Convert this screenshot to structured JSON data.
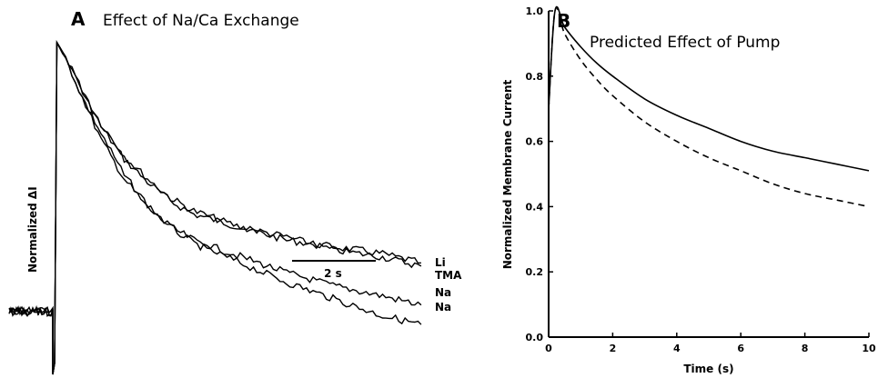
{
  "chart_data": [
    {
      "type": "line",
      "panel_letter": "A",
      "title": "Effect of Na/Ca Exchange",
      "ylabel": "Normalized ΔI",
      "xlabel": "",
      "scale_bar": {
        "label": "2 s",
        "duration_s": 2
      },
      "x_unit": "s",
      "ylim": [
        0,
        1
      ],
      "grid": false,
      "series": [
        {
          "name": "Li",
          "x": [
            0,
            0.05,
            0.3,
            0.6,
            1.0,
            1.5,
            2.0,
            2.5,
            3.0,
            4.0,
            5.0,
            6.0,
            7.0,
            7.9
          ],
          "y": [
            0.0,
            0.99,
            0.93,
            0.84,
            0.73,
            0.63,
            0.56,
            0.5,
            0.46,
            0.42,
            0.38,
            0.36,
            0.34,
            0.31
          ]
        },
        {
          "name": "TMA",
          "x": [
            0,
            0.05,
            0.3,
            0.6,
            1.0,
            1.5,
            2.0,
            2.5,
            3.0,
            4.0,
            5.0,
            6.0,
            7.0,
            7.9
          ],
          "y": [
            0.0,
            0.99,
            0.93,
            0.84,
            0.74,
            0.64,
            0.57,
            0.51,
            0.47,
            0.42,
            0.39,
            0.35,
            0.33,
            0.3
          ]
        },
        {
          "name": "Na",
          "x": [
            0,
            0.05,
            0.3,
            0.6,
            1.0,
            1.5,
            2.0,
            2.5,
            3.0,
            4.0,
            5.0,
            6.0,
            7.0,
            7.9
          ],
          "y": [
            0.0,
            0.99,
            0.92,
            0.82,
            0.69,
            0.57,
            0.48,
            0.42,
            0.38,
            0.33,
            0.28,
            0.24,
            0.21,
            0.18
          ]
        },
        {
          "name": "Na",
          "x": [
            0,
            0.05,
            0.3,
            0.6,
            1.0,
            1.5,
            2.0,
            2.5,
            3.0,
            4.0,
            5.0,
            6.0,
            7.0,
            7.9
          ],
          "y": [
            0.0,
            0.99,
            0.92,
            0.82,
            0.71,
            0.58,
            0.49,
            0.42,
            0.37,
            0.31,
            0.25,
            0.2,
            0.15,
            0.12
          ]
        }
      ]
    },
    {
      "type": "line",
      "panel_letter": "B",
      "title": "Predicted Effect of Pump",
      "xlabel": "Time  (s)",
      "ylabel": "Normalized  Membrane  Current",
      "xlim": [
        0,
        10
      ],
      "ylim": [
        0,
        1
      ],
      "xticks": [
        0,
        2,
        4,
        6,
        8,
        10
      ],
      "yticks": [
        0.0,
        0.2,
        0.4,
        0.6,
        0.8,
        1.0
      ],
      "xtick_labels": [
        "0",
        "2",
        "4",
        "6",
        "8",
        "10"
      ],
      "ytick_labels": [
        "0.0",
        "0.2",
        "0.4",
        "0.6",
        "0.8",
        "1.0"
      ],
      "grid": false,
      "series": [
        {
          "style": "solid",
          "x": [
            0,
            0.2,
            0.5,
            1,
            1.5,
            2,
            3,
            4,
            5,
            6,
            7,
            8,
            9,
            10
          ],
          "y": [
            0.7,
            1.0,
            0.95,
            0.89,
            0.84,
            0.8,
            0.73,
            0.68,
            0.64,
            0.6,
            0.57,
            0.55,
            0.53,
            0.51
          ]
        },
        {
          "style": "dashed",
          "x": [
            0,
            0.2,
            0.5,
            1,
            1.5,
            2,
            3,
            4,
            5,
            6,
            7,
            8,
            9,
            10
          ],
          "y": [
            0.7,
            1.0,
            0.93,
            0.85,
            0.79,
            0.74,
            0.66,
            0.6,
            0.55,
            0.51,
            0.47,
            0.44,
            0.42,
            0.4
          ]
        }
      ]
    }
  ]
}
